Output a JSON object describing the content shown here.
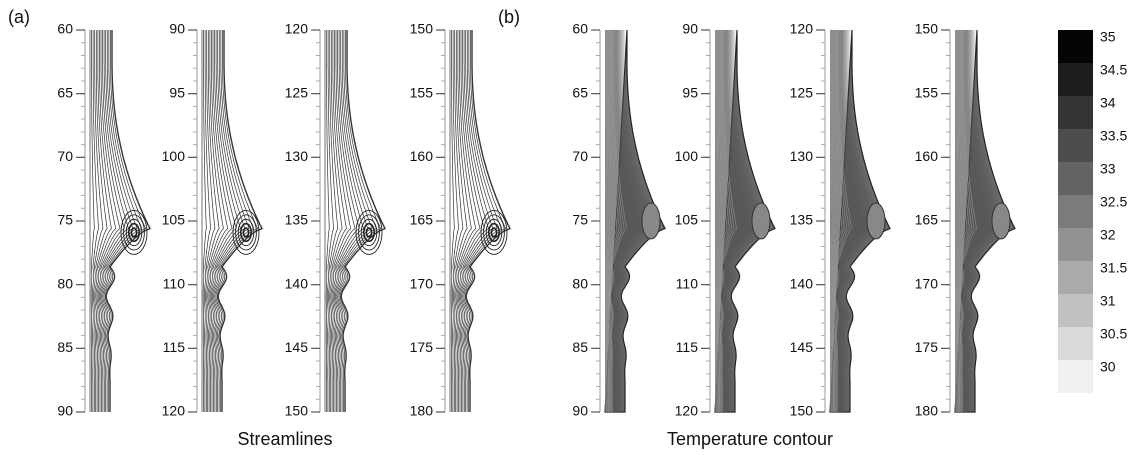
{
  "panels": [
    {
      "label": "(a)",
      "caption": "Streamlines",
      "style": "streamlines",
      "axes": [
        {
          "ylim": [
            60,
            90
          ],
          "yticks": [
            60,
            65,
            70,
            75,
            80,
            85,
            90
          ]
        },
        {
          "ylim": [
            90,
            120
          ],
          "yticks": [
            90,
            95,
            100,
            105,
            110,
            115,
            120
          ]
        },
        {
          "ylim": [
            120,
            150
          ],
          "yticks": [
            120,
            125,
            130,
            135,
            140,
            145,
            150
          ]
        },
        {
          "ylim": [
            150,
            180
          ],
          "yticks": [
            150,
            155,
            160,
            165,
            170,
            175,
            180
          ]
        }
      ]
    },
    {
      "label": "(b)",
      "caption": "Temperature contour",
      "style": "contour",
      "axes": [
        {
          "ylim": [
            60,
            90
          ],
          "yticks": [
            60,
            65,
            70,
            75,
            80,
            85,
            90
          ]
        },
        {
          "ylim": [
            90,
            120
          ],
          "yticks": [
            90,
            95,
            100,
            105,
            110,
            115,
            120
          ]
        },
        {
          "ylim": [
            120,
            150
          ],
          "yticks": [
            120,
            125,
            130,
            135,
            140,
            145,
            150
          ]
        },
        {
          "ylim": [
            150,
            180
          ],
          "yticks": [
            150,
            155,
            160,
            165,
            170,
            175,
            180
          ]
        }
      ]
    }
  ],
  "colorbar": {
    "levels": [
      35,
      34.5,
      34,
      33.5,
      33,
      32.5,
      32,
      31.5,
      31,
      30.5,
      30
    ]
  }
}
